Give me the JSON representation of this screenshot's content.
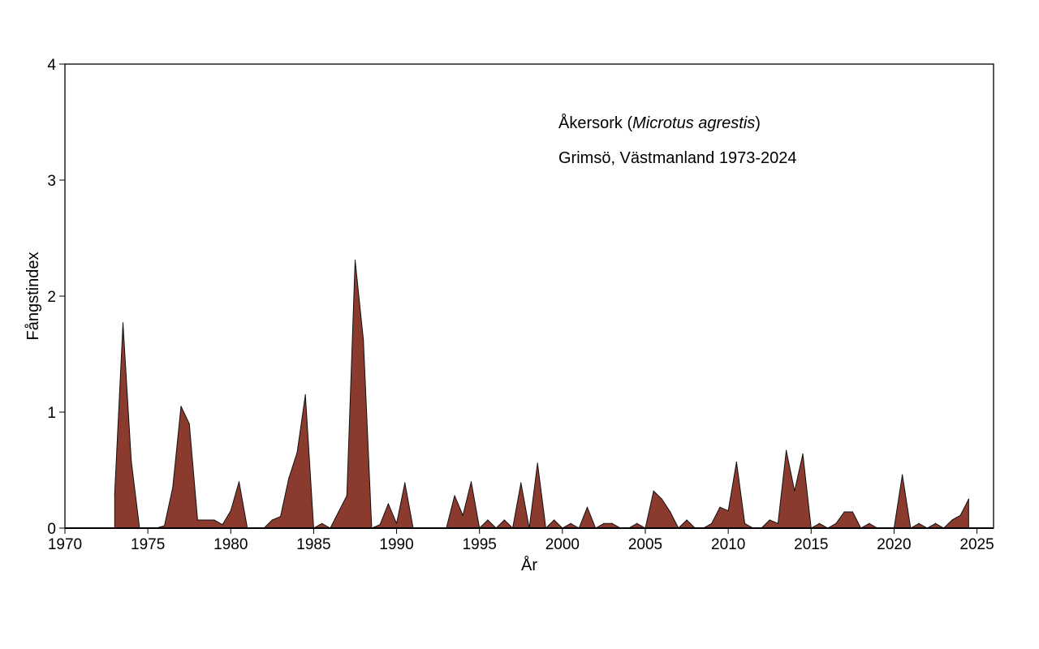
{
  "chart_data": {
    "type": "area",
    "xlabel": "År",
    "ylabel": "Fångstindex",
    "xlim": [
      1970,
      2026
    ],
    "ylim": [
      0,
      4
    ],
    "xticks": [
      1970,
      1975,
      1980,
      1985,
      1990,
      1995,
      2000,
      2005,
      2010,
      2015,
      2020,
      2025
    ],
    "yticks": [
      0,
      1,
      2,
      3,
      4
    ],
    "grid": false,
    "legend": "none",
    "fill_color": "#8B3A2E",
    "line_color": "#111111",
    "annotations": {
      "species_prefix": "Åkersork (",
      "species_latin": "Microtus agrestis",
      "species_suffix": ")",
      "location": "Grimsö, Västmanland 1973-2024"
    },
    "series": [
      {
        "x": [
          1973.0,
          1973.5,
          1974.0,
          1974.5,
          1975.0,
          1975.5,
          1976.0,
          1976.5,
          1977.0,
          1977.5,
          1978.0,
          1978.5,
          1979.0,
          1979.5,
          1980.0,
          1980.5,
          1981.0,
          1981.5,
          1982.0,
          1982.5,
          1983.0,
          1983.5,
          1984.0,
          1984.5,
          1985.0,
          1985.5,
          1986.0,
          1986.5,
          1987.0,
          1987.5,
          1988.0,
          1988.5,
          1989.0,
          1989.5,
          1990.0,
          1990.5,
          1991.0,
          1991.5,
          1992.0,
          1992.5,
          1993.0,
          1993.5,
          1994.0,
          1994.5,
          1995.0,
          1995.5,
          1996.0,
          1996.5,
          1997.0,
          1997.5,
          1998.0,
          1998.5,
          1999.0,
          1999.5,
          2000.0,
          2000.5,
          2001.0,
          2001.5,
          2002.0,
          2002.5,
          2003.0,
          2003.5,
          2004.0,
          2004.5,
          2005.0,
          2005.5,
          2006.0,
          2006.5,
          2007.0,
          2007.5,
          2008.0,
          2008.5,
          2009.0,
          2009.5,
          2010.0,
          2010.5,
          2011.0,
          2011.5,
          2012.0,
          2012.5,
          2013.0,
          2013.5,
          2014.0,
          2014.5,
          2015.0,
          2015.5,
          2016.0,
          2016.5,
          2017.0,
          2017.5,
          2018.0,
          2018.5,
          2019.0,
          2019.5,
          2020.0,
          2020.5,
          2021.0,
          2021.5,
          2022.0,
          2022.5,
          2023.0,
          2023.5,
          2024.0,
          2024.5
        ],
        "values": [
          0.3,
          1.77,
          0.58,
          0.0,
          0.0,
          0.0,
          0.02,
          0.35,
          1.05,
          0.9,
          0.07,
          0.07,
          0.07,
          0.03,
          0.15,
          0.4,
          0.0,
          0.0,
          0.0,
          0.07,
          0.1,
          0.43,
          0.65,
          1.15,
          0.0,
          0.04,
          0.0,
          0.14,
          0.28,
          2.31,
          1.62,
          0.0,
          0.03,
          0.21,
          0.04,
          0.39,
          0.0,
          0.0,
          0.0,
          0.0,
          0.0,
          0.28,
          0.11,
          0.4,
          0.0,
          0.07,
          0.0,
          0.07,
          0.0,
          0.39,
          0.0,
          0.56,
          0.0,
          0.07,
          0.0,
          0.04,
          0.0,
          0.18,
          0.0,
          0.04,
          0.04,
          0.0,
          0.0,
          0.04,
          0.0,
          0.32,
          0.25,
          0.14,
          0.0,
          0.07,
          0.0,
          0.0,
          0.04,
          0.18,
          0.15,
          0.57,
          0.04,
          0.0,
          0.0,
          0.07,
          0.04,
          0.67,
          0.32,
          0.64,
          0.0,
          0.04,
          0.0,
          0.04,
          0.14,
          0.14,
          0.0,
          0.04,
          0.0,
          0.0,
          0.0,
          0.46,
          0.0,
          0.04,
          0.0,
          0.04,
          0.0,
          0.07,
          0.11,
          0.25
        ]
      }
    ]
  }
}
